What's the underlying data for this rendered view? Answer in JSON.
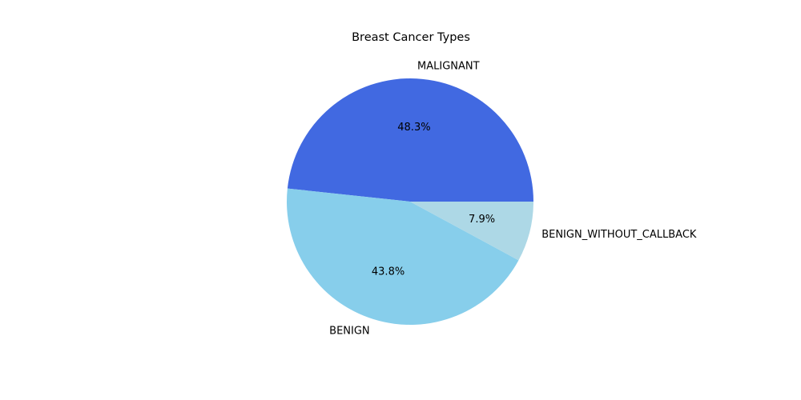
{
  "chart_data": {
    "type": "pie",
    "title": "Breast Cancer Types",
    "categories": [
      "MALIGNANT",
      "BENIGN",
      "BENIGN_WITHOUT_CALLBACK"
    ],
    "values": [
      48.3,
      43.8,
      7.9
    ],
    "percent_labels": [
      "48.3%",
      "43.8%",
      "7.9%"
    ],
    "colors": [
      "#4169e1",
      "#87ceeb",
      "#add8e6"
    ],
    "start_angle_deg": 0,
    "direction": "counterclockwise",
    "grid": false,
    "legend": "none"
  }
}
